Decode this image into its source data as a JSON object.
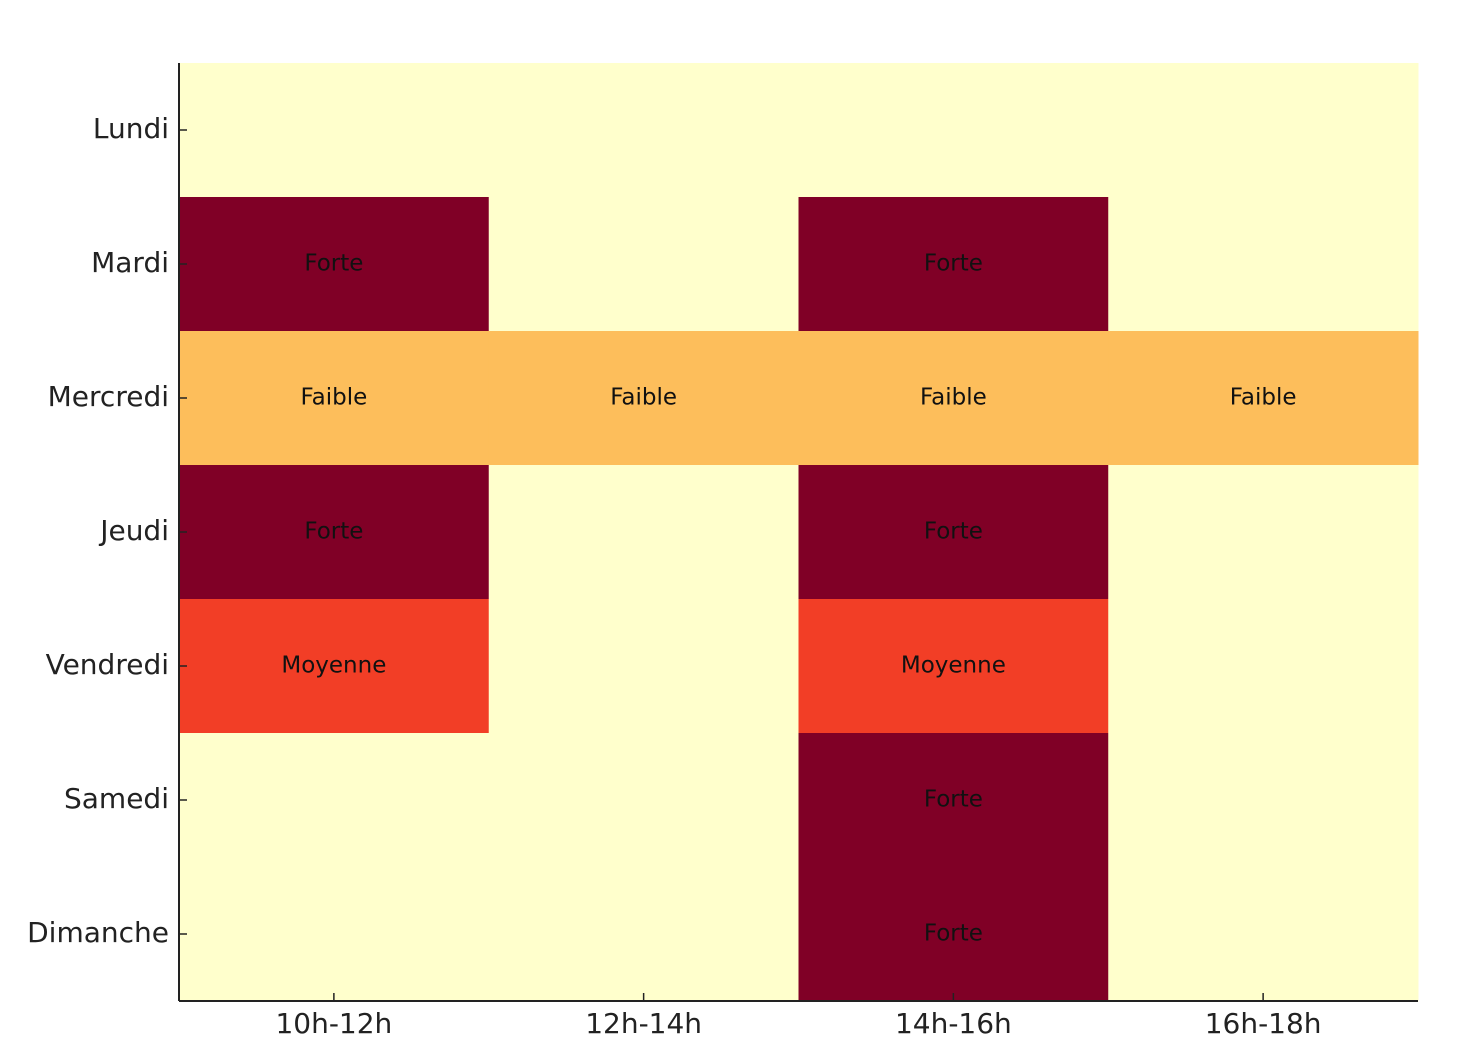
{
  "chart_data": {
    "type": "heatmap",
    "x": [
      "10h-12h",
      "12h-14h",
      "14h-16h",
      "16h-18h"
    ],
    "y": [
      "Lundi",
      "Mardi",
      "Mercredi",
      "Jeudi",
      "Vendredi",
      "Samedi",
      "Dimanche"
    ],
    "values": [
      [
        0,
        0,
        0,
        0
      ],
      [
        3,
        0,
        3,
        0
      ],
      [
        1,
        1,
        1,
        1
      ],
      [
        3,
        0,
        3,
        0
      ],
      [
        2,
        0,
        2,
        0
      ],
      [
        0,
        0,
        3,
        0
      ],
      [
        0,
        0,
        3,
        0
      ]
    ],
    "value_labels": [
      [
        null,
        null,
        null,
        null
      ],
      [
        "Forte",
        null,
        "Forte",
        null
      ],
      [
        "Faible",
        "Faible",
        "Faible",
        "Faible"
      ],
      [
        "Forte",
        null,
        "Forte",
        null
      ],
      [
        "Moyenne",
        null,
        "Moyenne",
        null
      ],
      [
        null,
        null,
        "Forte",
        null
      ],
      [
        null,
        null,
        "Forte",
        null
      ]
    ],
    "colors": [
      "#ffffcc",
      "#fdbe5b",
      "#f23e26",
      "#800026"
    ]
  }
}
